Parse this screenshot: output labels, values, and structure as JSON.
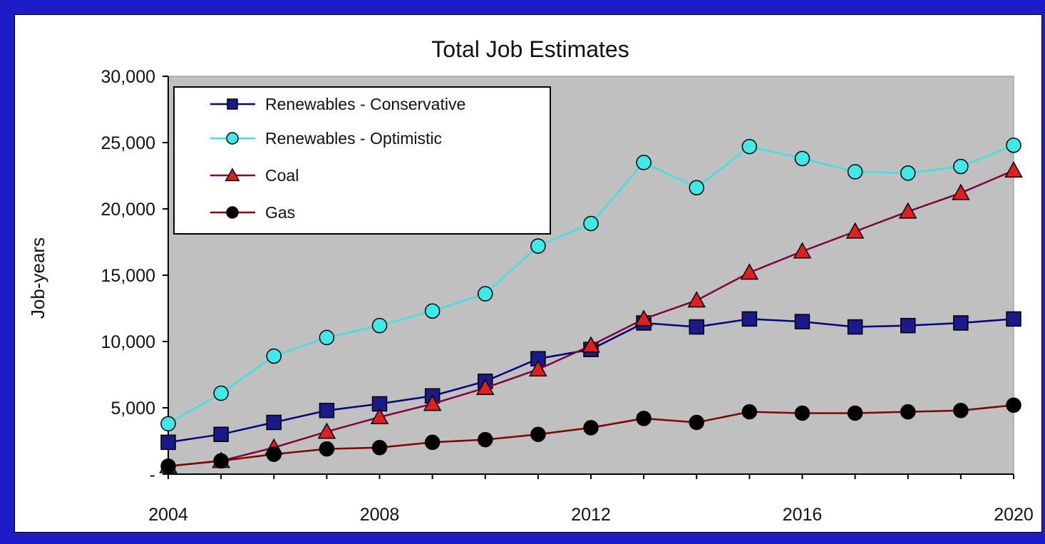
{
  "chart_data": {
    "type": "line",
    "title": "Total Job Estimates",
    "xlabel": "",
    "ylabel": "Job-years",
    "x": [
      2004,
      2005,
      2006,
      2007,
      2008,
      2009,
      2010,
      2011,
      2012,
      2013,
      2014,
      2015,
      2016,
      2017,
      2018,
      2019,
      2020
    ],
    "x_ticks": [
      "2004",
      "2008",
      "2012",
      "2016",
      "2020"
    ],
    "x_tick_values": [
      2004,
      2008,
      2012,
      2016,
      2020
    ],
    "xlim": [
      2004,
      2020
    ],
    "y_ticks": [
      "-",
      "5,000",
      "10,000",
      "15,000",
      "20,000",
      "25,000",
      "30,000"
    ],
    "y_tick_values": [
      0,
      5000,
      10000,
      15000,
      20000,
      25000,
      30000
    ],
    "ylim": [
      0,
      30000
    ],
    "grid": false,
    "plot_background": "#c0c0c0",
    "legend_position": "top-left",
    "series": [
      {
        "name": "Renewables - Conservative",
        "color": "#000080",
        "marker_color": "#1a1a8a",
        "marker": "square",
        "values": [
          2400,
          3000,
          3900,
          4800,
          5300,
          5900,
          7000,
          8700,
          9400,
          11400,
          11100,
          11700,
          11500,
          11100,
          11200,
          11400,
          11700
        ]
      },
      {
        "name": "Renewables - Optimistic",
        "color": "#40e0e0",
        "marker_color": "#40e8e8",
        "marker": "circle",
        "values": [
          3800,
          6100,
          8900,
          10300,
          11200,
          12300,
          13600,
          17200,
          18900,
          23500,
          21600,
          24700,
          23800,
          22800,
          22700,
          23200,
          24800
        ]
      },
      {
        "name": "Coal",
        "color": "#800040",
        "marker_color": "#e02020",
        "marker": "triangle",
        "values": [
          600,
          1000,
          2000,
          3200,
          4300,
          5300,
          6500,
          7900,
          9700,
          11700,
          13100,
          15200,
          16800,
          18300,
          19800,
          21200,
          22900
        ]
      },
      {
        "name": "Gas",
        "color": "#800000",
        "marker_color": "#000000",
        "marker": "circle",
        "values": [
          600,
          1000,
          1500,
          1900,
          2000,
          2400,
          2600,
          3000,
          3500,
          4200,
          3900,
          4700,
          4600,
          4600,
          4700,
          4800,
          5200
        ]
      }
    ]
  }
}
